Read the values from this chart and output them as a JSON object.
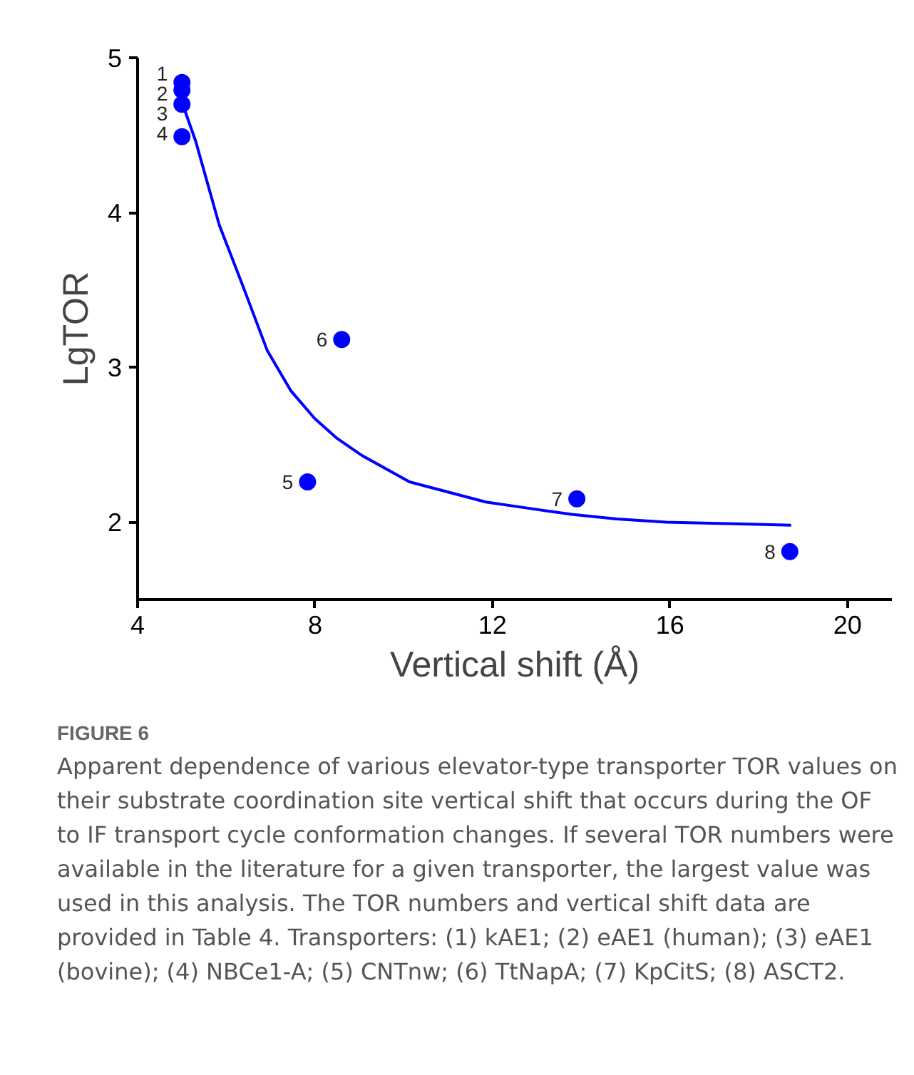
{
  "chart_data": {
    "type": "scatter",
    "xlabel": "Vertical shift (Å)",
    "ylabel": "LgTOR",
    "xlim": [
      4,
      21
    ],
    "ylim": [
      1.5,
      5
    ],
    "xticks": [
      4,
      8,
      12,
      16,
      20
    ],
    "yticks": [
      2,
      3,
      4,
      5
    ],
    "grid": false,
    "series": [
      {
        "marker": "circle",
        "color": "#0000ff",
        "x": [
          5.0,
          5.0,
          5.0,
          5.0,
          7.83,
          8.6,
          13.9,
          18.7
        ],
        "values": [
          4.84,
          4.79,
          4.7,
          4.49,
          2.26,
          3.18,
          2.15,
          1.81
        ]
      },
      {
        "type": "line",
        "marker": "none",
        "color": "#0000ff",
        "x": [
          5.04,
          5.31,
          5.84,
          6.38,
          6.92,
          7.45,
          7.99,
          8.5,
          9.06,
          10.13,
          11.85,
          12.8,
          13.78,
          14.8,
          15.92,
          17.3,
          18.73
        ],
        "values": [
          4.68,
          4.46,
          3.92,
          3.52,
          3.11,
          2.85,
          2.67,
          2.54,
          2.43,
          2.26,
          2.13,
          2.09,
          2.05,
          2.02,
          2.0,
          1.99,
          1.98
        ]
      }
    ],
    "annotations": [
      {
        "text": "1",
        "x": 5.0,
        "y": 4.84
      },
      {
        "text": "2",
        "x": 5.0,
        "y": 4.79
      },
      {
        "text": "3",
        "x": 5.0,
        "y": 4.7
      },
      {
        "text": "4",
        "x": 5.0,
        "y": 4.49
      },
      {
        "text": "5",
        "x": 7.83,
        "y": 2.26
      },
      {
        "text": "6",
        "x": 8.6,
        "y": 3.18
      },
      {
        "text": "7",
        "x": 13.9,
        "y": 2.15
      },
      {
        "text": "8",
        "x": 18.7,
        "y": 1.81
      },
      "FIGURE 6",
      "Apparent dependence of various elevator-type transporter TOR values on their substrate coordination site vertical shift that occurs during the OF to IF transport cycle conformation changes. If several TOR numbers were available in the literature for a given transporter, the largest value was used in this analysis. The TOR numbers and vertical shift data are provided in Table 4. Transporters: (1) kAE1; (2) eAE1 (human); (3) eAE1 (bovine); (4) NBCe1-A; (5) CNTnw; (6) TtNapA; (7) KpCitS; (8) ASCT2."
    ]
  }
}
